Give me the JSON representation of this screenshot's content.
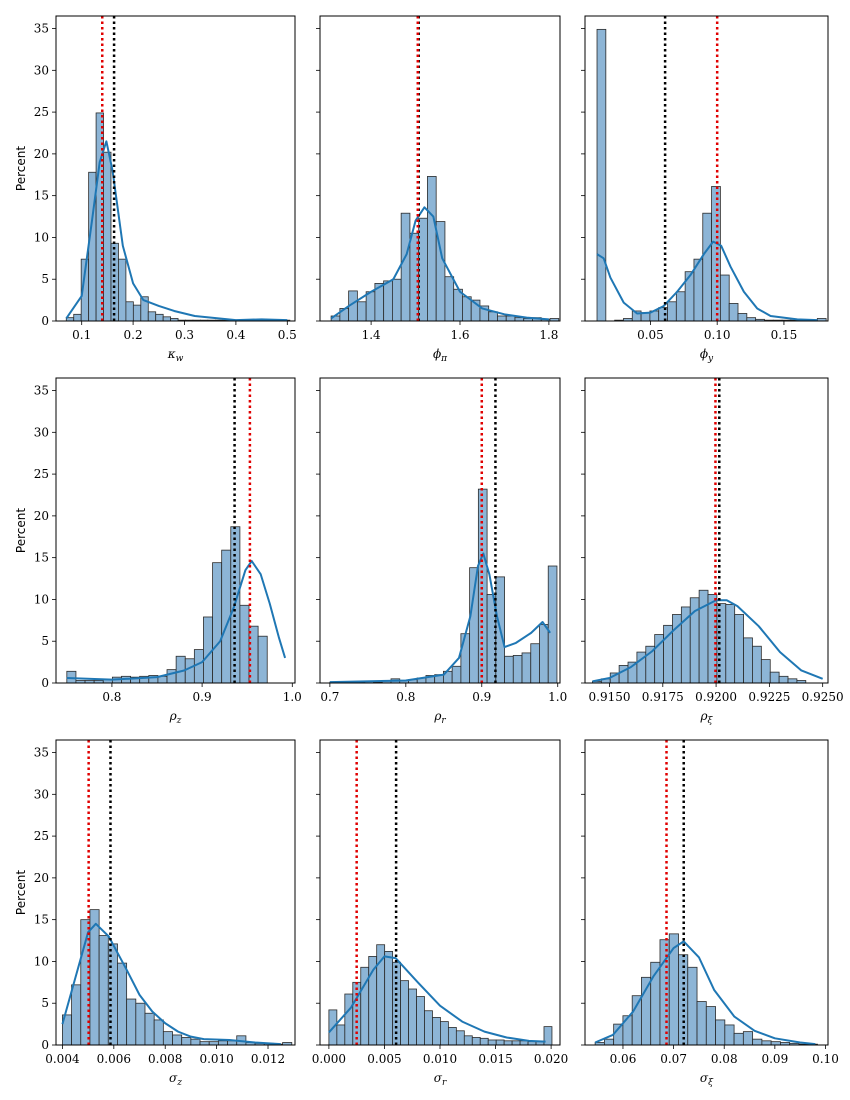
{
  "colors": {
    "bar_fill": "#8db5d6",
    "bar_edge": "#2b2b2b",
    "kde": "#1f77b4",
    "red_line": "#e00000",
    "black_line": "#000000"
  },
  "shared_y": {
    "label": "Percent",
    "ylim": [
      0,
      36.5
    ],
    "ticks": [
      "0",
      "5",
      "10",
      "15",
      "20",
      "25",
      "30",
      "35"
    ]
  },
  "chart_data": [
    {
      "type": "histogram",
      "id": "kappa_w",
      "xlabel": "κ",
      "xsub": "w",
      "xlim": [
        0.05,
        0.515
      ],
      "xticks": [
        0.1,
        0.2,
        0.3,
        0.4,
        0.5
      ],
      "xtick_labels": [
        "0.1",
        "0.2",
        "0.3",
        "0.4",
        "0.5"
      ],
      "bins_start": 0.07,
      "bin_width": 0.0145,
      "values": [
        0.4,
        0.8,
        7.4,
        17.8,
        24.9,
        20.2,
        9.3,
        7.4,
        2.3,
        1.9,
        2.9,
        1.1,
        0.8,
        0.5,
        0.3,
        0.1,
        0.1,
        0.1,
        0.1,
        0.1,
        0.1,
        0.1,
        0.1,
        0.1,
        0.1,
        0.1,
        0.1,
        0.1,
        0.1,
        0.1
      ],
      "kde": [
        [
          0.07,
          0.3
        ],
        [
          0.1,
          3
        ],
        [
          0.12,
          12
        ],
        [
          0.135,
          19
        ],
        [
          0.148,
          21.5
        ],
        [
          0.16,
          18
        ],
        [
          0.18,
          9
        ],
        [
          0.2,
          4.5
        ],
        [
          0.22,
          2.5
        ],
        [
          0.25,
          1.8
        ],
        [
          0.28,
          1.2
        ],
        [
          0.32,
          0.6
        ],
        [
          0.4,
          0.1
        ],
        [
          0.45,
          0.2
        ],
        [
          0.5,
          0.1
        ]
      ],
      "red": 0.14,
      "black": 0.163
    },
    {
      "type": "histogram",
      "id": "phi_pi",
      "xlabel": "ϕ",
      "xsub": "π",
      "xlim": [
        1.285,
        1.825
      ],
      "xticks": [
        1.4,
        1.6,
        1.8
      ],
      "xtick_labels": [
        "1.4",
        "1.6",
        "1.8"
      ],
      "bins_start": 1.31,
      "bin_width": 0.0197,
      "values": [
        0.6,
        1.5,
        3.6,
        2.3,
        3.5,
        4.5,
        4.8,
        5.0,
        12.9,
        10.5,
        12.3,
        17.3,
        11.9,
        5.3,
        3.8,
        2.9,
        2.5,
        1.8,
        1.1,
        0.6,
        0.6,
        0.4,
        0.3,
        0.4,
        0.2,
        0.3
      ],
      "kde": [
        [
          1.31,
          0.3
        ],
        [
          1.35,
          1.8
        ],
        [
          1.4,
          3.5
        ],
        [
          1.45,
          5.0
        ],
        [
          1.48,
          8
        ],
        [
          1.5,
          12
        ],
        [
          1.52,
          13.6
        ],
        [
          1.54,
          12.5
        ],
        [
          1.56,
          7.5
        ],
        [
          1.6,
          3.5
        ],
        [
          1.65,
          1.5
        ],
        [
          1.7,
          0.8
        ],
        [
          1.75,
          0.4
        ],
        [
          1.8,
          0.2
        ]
      ],
      "red": 1.505,
      "black": 1.507
    },
    {
      "type": "histogram",
      "id": "phi_y",
      "xlabel": "ϕ",
      "xsub": "y",
      "xlim": [
        0.001,
        0.183
      ],
      "xticks": [
        0.05,
        0.1,
        0.15
      ],
      "xtick_labels": [
        "0.05",
        "0.10",
        "0.15"
      ],
      "bins_start": 0.01,
      "bin_width": 0.0066,
      "values": [
        34.9,
        0.0,
        0.1,
        0.3,
        1.2,
        1.0,
        1.2,
        1.6,
        2.3,
        3.5,
        5.9,
        7.4,
        12.9,
        16.1,
        5.5,
        2.1,
        0.9,
        0.4,
        0.2,
        0.1,
        0.1,
        0.1,
        0.1,
        0.1,
        0.1,
        0.3
      ],
      "kde": [
        [
          0.01,
          8
        ],
        [
          0.015,
          7.5
        ],
        [
          0.02,
          5.2
        ],
        [
          0.03,
          2.2
        ],
        [
          0.04,
          0.9
        ],
        [
          0.05,
          1.0
        ],
        [
          0.06,
          1.8
        ],
        [
          0.07,
          3.5
        ],
        [
          0.08,
          5.5
        ],
        [
          0.09,
          8
        ],
        [
          0.097,
          9.5
        ],
        [
          0.103,
          9
        ],
        [
          0.11,
          6.5
        ],
        [
          0.12,
          3.5
        ],
        [
          0.13,
          1.5
        ],
        [
          0.14,
          0.6
        ],
        [
          0.16,
          0.2
        ],
        [
          0.175,
          0.1
        ]
      ],
      "red": 0.1,
      "black": 0.061
    },
    {
      "type": "histogram",
      "id": "rho_z",
      "xlabel": "ρ",
      "xsub": "z",
      "xlim": [
        0.738,
        1.003
      ],
      "xticks": [
        0.8,
        0.9,
        1.0
      ],
      "xtick_labels": [
        "0.8",
        "0.9",
        "1.0"
      ],
      "bins_start": 0.75,
      "bin_width": 0.0101,
      "values": [
        1.4,
        0.3,
        0.3,
        0.3,
        0.4,
        0.7,
        0.8,
        0.7,
        0.8,
        0.9,
        0.8,
        1.6,
        3.2,
        2.9,
        4.0,
        7.9,
        14.4,
        15.9,
        18.7,
        9.3,
        6.8,
        5.6
      ],
      "kde": [
        [
          0.75,
          0.6
        ],
        [
          0.8,
          0.4
        ],
        [
          0.85,
          0.7
        ],
        [
          0.88,
          1.5
        ],
        [
          0.9,
          2.5
        ],
        [
          0.92,
          5
        ],
        [
          0.935,
          9
        ],
        [
          0.948,
          13.5
        ],
        [
          0.955,
          14.6
        ],
        [
          0.965,
          13
        ],
        [
          0.975,
          9.5
        ],
        [
          0.985,
          5.5
        ],
        [
          0.992,
          3
        ]
      ],
      "red": 0.953,
      "black": 0.936
    },
    {
      "type": "histogram",
      "id": "rho_r",
      "xlabel": "ρ",
      "xsub": "r",
      "xlim": [
        0.687,
        1.003
      ],
      "xticks": [
        0.7,
        0.8,
        0.9,
        1.0
      ],
      "xtick_labels": [
        "0.7",
        "0.8",
        "0.9",
        "1.0"
      ],
      "bins_start": 0.7,
      "bin_width": 0.0115,
      "values": [
        0.1,
        0.1,
        0.1,
        0.1,
        0.2,
        0.1,
        0.3,
        0.5,
        0.3,
        0.4,
        0.6,
        0.9,
        1.0,
        1.4,
        2.0,
        5.9,
        13.8,
        23.2,
        10.6,
        12.7,
        3.2,
        3.3,
        3.6,
        4.7,
        7.0,
        14.0
      ],
      "kde": [
        [
          0.7,
          0.1
        ],
        [
          0.8,
          0.3
        ],
        [
          0.85,
          1.0
        ],
        [
          0.87,
          3
        ],
        [
          0.885,
          8
        ],
        [
          0.895,
          14
        ],
        [
          0.902,
          15.5
        ],
        [
          0.91,
          13
        ],
        [
          0.92,
          8
        ],
        [
          0.93,
          4.3
        ],
        [
          0.945,
          4.8
        ],
        [
          0.965,
          6
        ],
        [
          0.98,
          7.3
        ],
        [
          0.99,
          6
        ]
      ],
      "red": 0.9,
      "black": 0.918
    },
    {
      "type": "histogram",
      "id": "rho_xi",
      "xlabel": "ρ",
      "xsub": "ξ",
      "xlim": [
        0.91385,
        0.92525
      ],
      "xticks": [
        0.915,
        0.9175,
        0.92,
        0.9225,
        0.925
      ],
      "xtick_labels": [
        "0.9150",
        "0.9175",
        "0.9200",
        "0.9225",
        "0.9250"
      ],
      "bins_start": 0.9142,
      "bin_width": 0.000417,
      "values": [
        0.2,
        0.5,
        1.2,
        2.1,
        2.5,
        3.7,
        4.4,
        5.8,
        6.9,
        8.2,
        9.1,
        10.2,
        11.1,
        10.6,
        9.5,
        9.4,
        8.2,
        5.4,
        4.4,
        2.8,
        1.3,
        0.8,
        0.5,
        0.3
      ],
      "kde": [
        [
          0.9142,
          0.2
        ],
        [
          0.915,
          0.6
        ],
        [
          0.916,
          1.9
        ],
        [
          0.917,
          3.8
        ],
        [
          0.918,
          6.3
        ],
        [
          0.919,
          8.6
        ],
        [
          0.92,
          9.9
        ],
        [
          0.9205,
          9.9
        ],
        [
          0.921,
          9.2
        ],
        [
          0.922,
          6.8
        ],
        [
          0.923,
          3.7
        ],
        [
          0.924,
          1.5
        ],
        [
          0.925,
          0.5
        ]
      ],
      "red": 0.91997,
      "black": 0.92015
    },
    {
      "type": "histogram",
      "id": "sigma_z",
      "xlabel": "σ",
      "xsub": "z",
      "xlim": [
        0.00375,
        0.01305
      ],
      "xticks": [
        0.004,
        0.006,
        0.008,
        0.01,
        0.012
      ],
      "xtick_labels": [
        "0.004",
        "0.006",
        "0.008",
        "0.010",
        "0.012"
      ],
      "bins_start": 0.004,
      "bin_width": 0.000357,
      "values": [
        3.6,
        7.2,
        15.0,
        16.2,
        13.1,
        12.1,
        9.8,
        5.5,
        5.0,
        3.8,
        3.0,
        1.6,
        1.2,
        0.9,
        0.7,
        0.4,
        0.4,
        0.5,
        0.5,
        1.1,
        0.3,
        0.2,
        0.2,
        0.1,
        0.3
      ],
      "kde": [
        [
          0.004,
          2.5
        ],
        [
          0.0045,
          8
        ],
        [
          0.005,
          13.5
        ],
        [
          0.0053,
          14.5
        ],
        [
          0.0058,
          13
        ],
        [
          0.0065,
          9
        ],
        [
          0.007,
          6
        ],
        [
          0.0075,
          4
        ],
        [
          0.008,
          2.6
        ],
        [
          0.0085,
          1.6
        ],
        [
          0.009,
          1.0
        ],
        [
          0.0095,
          0.7
        ],
        [
          0.0105,
          0.6
        ],
        [
          0.0115,
          0.3
        ],
        [
          0.0125,
          0.1
        ]
      ],
      "red": 0.00502,
      "black": 0.00587
    },
    {
      "type": "histogram",
      "id": "sigma_r",
      "xlabel": "σ",
      "xsub": "r",
      "xlim": [
        -0.0008,
        0.0208
      ],
      "xticks": [
        0.0,
        0.005,
        0.01,
        0.015,
        0.02
      ],
      "xtick_labels": [
        "0.000",
        "0.005",
        "0.010",
        "0.015",
        "0.020"
      ],
      "bins_start": 0.0,
      "bin_width": 0.000717,
      "values": [
        4.2,
        2.4,
        6.1,
        7.5,
        9.3,
        10.6,
        12.0,
        11.2,
        9.9,
        7.7,
        6.7,
        5.8,
        4.1,
        3.3,
        2.8,
        2.1,
        1.7,
        1.1,
        0.9,
        0.8,
        0.6,
        0.6,
        0.5,
        0.5,
        0.5,
        0.4,
        0.4,
        2.2
      ],
      "kde": [
        [
          0.0,
          1.5
        ],
        [
          0.002,
          4.5
        ],
        [
          0.004,
          9
        ],
        [
          0.005,
          10.6
        ],
        [
          0.006,
          10.4
        ],
        [
          0.008,
          7.5
        ],
        [
          0.01,
          4.7
        ],
        [
          0.012,
          2.8
        ],
        [
          0.014,
          1.6
        ],
        [
          0.016,
          0.9
        ],
        [
          0.018,
          0.5
        ],
        [
          0.0195,
          0.4
        ]
      ],
      "red": 0.0025,
      "black": 0.00605
    },
    {
      "type": "histogram",
      "id": "sigma_xi",
      "xlabel": "σ",
      "xsub": "ξ",
      "xlim": [
        0.0525,
        0.1005
      ],
      "xticks": [
        0.06,
        0.07,
        0.08,
        0.09,
        0.1
      ],
      "xtick_labels": [
        "0.06",
        "0.07",
        "0.08",
        "0.09",
        "0.10"
      ],
      "bins_start": 0.0545,
      "bin_width": 0.00183,
      "values": [
        0.3,
        0.7,
        2.5,
        3.5,
        5.9,
        8.1,
        9.9,
        12.6,
        13.3,
        10.8,
        9.3,
        5.2,
        4.6,
        3.0,
        2.4,
        1.4,
        1.6,
        0.7,
        0.5,
        0.4,
        0.3,
        0.2,
        0.1,
        0.1
      ],
      "kde": [
        [
          0.0545,
          0.3
        ],
        [
          0.058,
          1.2
        ],
        [
          0.062,
          4
        ],
        [
          0.066,
          8.2
        ],
        [
          0.07,
          11.6
        ],
        [
          0.072,
          12.4
        ],
        [
          0.075,
          10.5
        ],
        [
          0.078,
          6.6
        ],
        [
          0.082,
          3.4
        ],
        [
          0.086,
          1.7
        ],
        [
          0.09,
          0.8
        ],
        [
          0.095,
          0.3
        ],
        [
          0.098,
          0.1
        ]
      ],
      "red": 0.0686,
      "black": 0.072
    }
  ]
}
